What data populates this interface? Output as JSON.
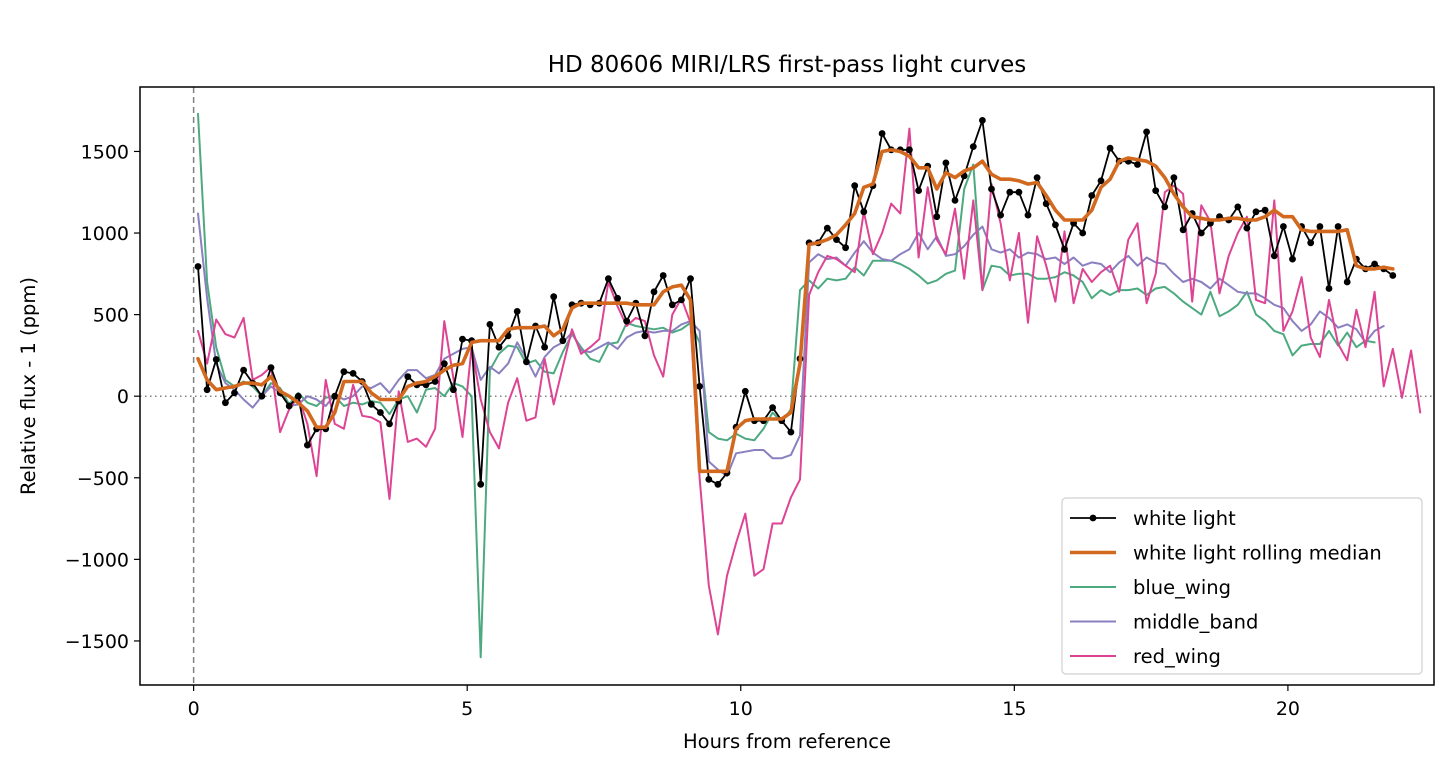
{
  "chart_data": {
    "type": "line",
    "title": "HD 80606 MIRI/LRS first-pass light curves",
    "xlabel": "Hours from reference",
    "ylabel": "Relative flux - 1 (ppm)",
    "xlim": [
      -0.98,
      22.67
    ],
    "ylim": [
      -1770,
      1895
    ],
    "xticks": [
      0,
      5,
      10,
      15,
      20
    ],
    "xtick_labels": [
      "0",
      "5",
      "10",
      "15",
      "20"
    ],
    "yticks": [
      -1500,
      -1000,
      -500,
      0,
      500,
      1000,
      1500
    ],
    "ytick_labels": [
      "−1500",
      "−1000",
      "−500",
      "0",
      "500",
      "1000",
      "1500"
    ],
    "grid": false,
    "legend_position": "lower-right",
    "reference_lines": {
      "vertical_x": 0,
      "horizontal_y": 0
    },
    "x_start": 0.08,
    "x_step": 0.1667,
    "series": [
      {
        "name": "white light",
        "color": "#000000",
        "marker": "dot",
        "values": [
          795,
          40,
          225,
          -40,
          20,
          160,
          80,
          0,
          175,
          20,
          -60,
          0,
          -300,
          -200,
          -200,
          0,
          150,
          140,
          90,
          -50,
          -100,
          -170,
          -30,
          120,
          70,
          70,
          90,
          200,
          40,
          350,
          340,
          -540,
          440,
          300,
          370,
          520,
          210,
          430,
          300,
          610,
          340,
          560,
          570,
          560,
          570,
          720,
          600,
          460,
          570,
          370,
          640,
          740,
          560,
          590,
          720,
          60,
          -510,
          -540,
          -470,
          -190,
          30,
          -150,
          -150,
          -70,
          -150,
          -220,
          230,
          940,
          940,
          1030,
          960,
          910,
          1290,
          1130,
          1290,
          1610,
          1510,
          1510,
          1510,
          1260,
          1410,
          1100,
          1430,
          1200,
          1350,
          1530,
          1690,
          1270,
          1110,
          1250,
          1250,
          1110,
          1340,
          1180,
          1050,
          900,
          1060,
          1000,
          1230,
          1320,
          1520,
          1440,
          1440,
          1420,
          1620,
          1260,
          1160,
          1340,
          1020,
          1120,
          1000,
          1060,
          1100,
          1080,
          1160,
          1030,
          1130,
          1140,
          860,
          1040,
          840,
          1040,
          940,
          1040,
          660,
          1040,
          700,
          840,
          780,
          810,
          780,
          740
        ]
      },
      {
        "name": "white light rolling median",
        "color": "#d2691e",
        "marker": "none",
        "values": [
          230,
          100,
          40,
          50,
          60,
          80,
          80,
          70,
          120,
          30,
          0,
          -40,
          -90,
          -190,
          -190,
          -100,
          90,
          90,
          90,
          20,
          -20,
          -20,
          -20,
          60,
          80,
          90,
          120,
          160,
          190,
          200,
          330,
          340,
          340,
          340,
          410,
          420,
          420,
          420,
          430,
          370,
          410,
          540,
          570,
          570,
          570,
          570,
          570,
          570,
          560,
          560,
          560,
          640,
          670,
          680,
          590,
          -460,
          -460,
          -460,
          -460,
          -200,
          -150,
          -140,
          -140,
          -140,
          -140,
          -100,
          200,
          930,
          940,
          960,
          990,
          1050,
          1120,
          1280,
          1300,
          1500,
          1510,
          1500,
          1470,
          1400,
          1400,
          1270,
          1370,
          1340,
          1380,
          1400,
          1440,
          1360,
          1330,
          1330,
          1320,
          1300,
          1310,
          1230,
          1140,
          1080,
          1080,
          1080,
          1140,
          1280,
          1330,
          1440,
          1460,
          1450,
          1440,
          1410,
          1340,
          1240,
          1160,
          1100,
          1090,
          1080,
          1080,
          1090,
          1090,
          1080,
          1080,
          1100,
          1140,
          1100,
          1100,
          1020,
          1010,
          1010,
          1010,
          1010,
          1020,
          800,
          780,
          780,
          790,
          780
        ]
      },
      {
        "name": "blue_wing",
        "color": "#4daa80",
        "marker": "none",
        "values": [
          1730,
          700,
          300,
          100,
          60,
          90,
          60,
          0,
          80,
          50,
          -50,
          20,
          -40,
          -60,
          -10,
          0,
          -60,
          -40,
          -50,
          -30,
          -40,
          -110,
          -20,
          0,
          -100,
          40,
          50,
          0,
          80,
          60,
          0,
          -1600,
          160,
          260,
          310,
          300,
          200,
          220,
          150,
          140,
          270,
          380,
          300,
          230,
          210,
          320,
          330,
          450,
          430,
          420,
          410,
          420,
          390,
          410,
          450,
          330,
          -220,
          -260,
          -270,
          -230,
          -260,
          -270,
          -200,
          -100,
          -160,
          -80,
          650,
          710,
          660,
          720,
          710,
          720,
          790,
          740,
          830,
          830,
          830,
          810,
          780,
          740,
          690,
          710,
          750,
          770,
          1270,
          1420,
          650,
          800,
          790,
          740,
          750,
          750,
          720,
          720,
          730,
          760,
          740,
          700,
          600,
          650,
          620,
          650,
          650,
          660,
          620,
          660,
          670,
          630,
          580,
          540,
          500,
          640,
          490,
          520,
          560,
          640,
          500,
          460,
          400,
          380,
          250,
          310,
          320,
          320,
          400,
          310,
          390,
          300,
          340,
          330
        ]
      },
      {
        "name": "middle_band",
        "color": "#8a80c0",
        "marker": "none",
        "values": [
          1120,
          600,
          200,
          80,
          40,
          -20,
          -70,
          0,
          60,
          20,
          -60,
          -50,
          0,
          -20,
          -60,
          10,
          -20,
          0,
          60,
          50,
          80,
          20,
          100,
          160,
          160,
          110,
          130,
          230,
          260,
          290,
          300,
          100,
          180,
          140,
          200,
          330,
          230,
          120,
          240,
          300,
          330,
          390,
          280,
          270,
          300,
          330,
          290,
          360,
          390,
          400,
          390,
          400,
          400,
          440,
          460,
          400,
          -400,
          -450,
          -490,
          -350,
          -340,
          -330,
          -330,
          -380,
          -380,
          -360,
          -240,
          820,
          870,
          840,
          850,
          800,
          880,
          950,
          880,
          840,
          830,
          870,
          900,
          1000,
          900,
          980,
          860,
          870,
          920,
          990,
          1040,
          900,
          880,
          900,
          850,
          880,
          870,
          840,
          850,
          810,
          850,
          800,
          820,
          810,
          760,
          820,
          860,
          800,
          850,
          820,
          810,
          750,
          700,
          720,
          700,
          660,
          720,
          680,
          640,
          630,
          630,
          600,
          560,
          540,
          460,
          400,
          440,
          520,
          480,
          420,
          440,
          410,
          330,
          400,
          430
        ]
      },
      {
        "name": "red_wing",
        "color": "#dd4494",
        "marker": "none",
        "values": [
          400,
          200,
          470,
          380,
          360,
          480,
          100,
          130,
          180,
          -220,
          -80,
          0,
          -170,
          -490,
          100,
          -170,
          -200,
          70,
          -120,
          -130,
          -160,
          -630,
          30,
          -280,
          -260,
          -310,
          -200,
          460,
          110,
          -250,
          300,
          -20,
          -220,
          -320,
          -40,
          110,
          -150,
          -130,
          230,
          -50,
          180,
          410,
          260,
          300,
          350,
          700,
          550,
          430,
          480,
          460,
          250,
          120,
          500,
          600,
          450,
          -500,
          -1160,
          -1460,
          -1100,
          -900,
          -720,
          -1100,
          -1060,
          -780,
          -780,
          -620,
          -510,
          620,
          760,
          860,
          840,
          800,
          760,
          1130,
          870,
          1000,
          1180,
          1120,
          1640,
          850,
          1280,
          960,
          870,
          1150,
          720,
          1200,
          650,
          1300,
          1060,
          710,
          1000,
          450,
          980,
          800,
          580,
          1010,
          570,
          780,
          700,
          760,
          800,
          640,
          960,
          1060,
          570,
          750,
          1250,
          1290,
          1240,
          580,
          1170,
          1070,
          630,
          860,
          1000,
          1100,
          590,
          570,
          1200,
          400,
          520,
          730,
          360,
          240,
          590,
          320,
          220,
          530,
          300,
          640,
          60,
          290,
          -10,
          280,
          -100
        ]
      }
    ]
  }
}
